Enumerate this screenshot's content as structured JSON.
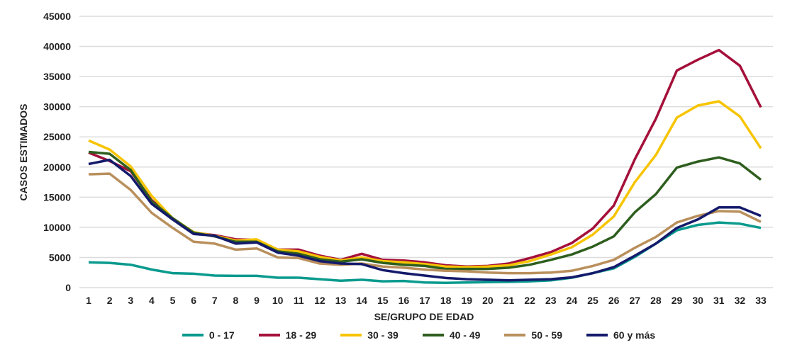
{
  "chart_data": {
    "type": "line",
    "title": "",
    "xlabel": "SE/GRUPO DE EDAD",
    "ylabel": "CASOS ESTIMADOS",
    "ylim": [
      0,
      45000
    ],
    "yticks": [
      0,
      5000,
      10000,
      15000,
      20000,
      25000,
      30000,
      35000,
      40000,
      45000
    ],
    "grid": true,
    "legend_position": "bottom",
    "x": [
      1,
      2,
      3,
      4,
      5,
      6,
      7,
      8,
      9,
      10,
      11,
      12,
      13,
      14,
      15,
      16,
      17,
      18,
      19,
      20,
      21,
      22,
      23,
      24,
      25,
      26,
      27,
      28,
      29,
      30,
      31,
      32,
      33
    ],
    "series": [
      {
        "name": "0 - 17",
        "color": "#0a9a8e",
        "values": [
          4200,
          4100,
          3800,
          3000,
          2400,
          2300,
          2000,
          1950,
          1950,
          1650,
          1650,
          1400,
          1150,
          1300,
          1050,
          1100,
          850,
          800,
          850,
          900,
          950,
          1050,
          1200,
          1650,
          2400,
          3200,
          5100,
          7300,
          9500,
          10400,
          10800,
          10600,
          9900
        ]
      },
      {
        "name": "18 - 29",
        "color": "#a4103a",
        "values": [
          22400,
          21000,
          19300,
          14500,
          11500,
          9100,
          8700,
          8000,
          7900,
          6300,
          6300,
          5300,
          4600,
          5600,
          4600,
          4500,
          4200,
          3700,
          3500,
          3600,
          4000,
          4900,
          5900,
          7400,
          9800,
          13600,
          21300,
          28000,
          36000,
          37800,
          39400,
          36800,
          29900
        ]
      },
      {
        "name": "30 - 39",
        "color": "#f7c400",
        "values": [
          24400,
          22900,
          20100,
          15200,
          11500,
          9200,
          8600,
          7800,
          8000,
          6300,
          6000,
          5100,
          4500,
          5000,
          4400,
          4200,
          3900,
          3500,
          3400,
          3500,
          3700,
          4400,
          5500,
          6700,
          8800,
          11800,
          17500,
          22000,
          28200,
          30200,
          30900,
          28400,
          23100
        ]
      },
      {
        "name": "40 - 49",
        "color": "#2e5e1e",
        "values": [
          22500,
          22200,
          19500,
          14300,
          11500,
          9100,
          8500,
          7600,
          7600,
          6000,
          5600,
          4700,
          4300,
          4700,
          4100,
          3800,
          3600,
          3100,
          3100,
          3100,
          3300,
          3800,
          4600,
          5500,
          6800,
          8500,
          12500,
          15500,
          19900,
          20900,
          21600,
          20600,
          17900
        ]
      },
      {
        "name": "50 - 59",
        "color": "#b98f5c",
        "values": [
          18800,
          18900,
          16200,
          12400,
          9900,
          7600,
          7300,
          6300,
          6500,
          5000,
          4900,
          4000,
          3800,
          4000,
          3500,
          3300,
          3000,
          2800,
          2700,
          2500,
          2400,
          2400,
          2500,
          2800,
          3600,
          4600,
          6600,
          8400,
          10800,
          11900,
          12700,
          12600,
          10900
        ]
      },
      {
        "name": "60 y más",
        "color": "#141a6b",
        "values": [
          20500,
          21200,
          18500,
          13900,
          11300,
          8900,
          8600,
          7300,
          7500,
          5800,
          5300,
          4400,
          4000,
          3900,
          2900,
          2400,
          2000,
          1600,
          1400,
          1300,
          1200,
          1300,
          1400,
          1700,
          2400,
          3400,
          5300,
          7300,
          9900,
          11300,
          13300,
          13300,
          11900
        ]
      }
    ]
  }
}
